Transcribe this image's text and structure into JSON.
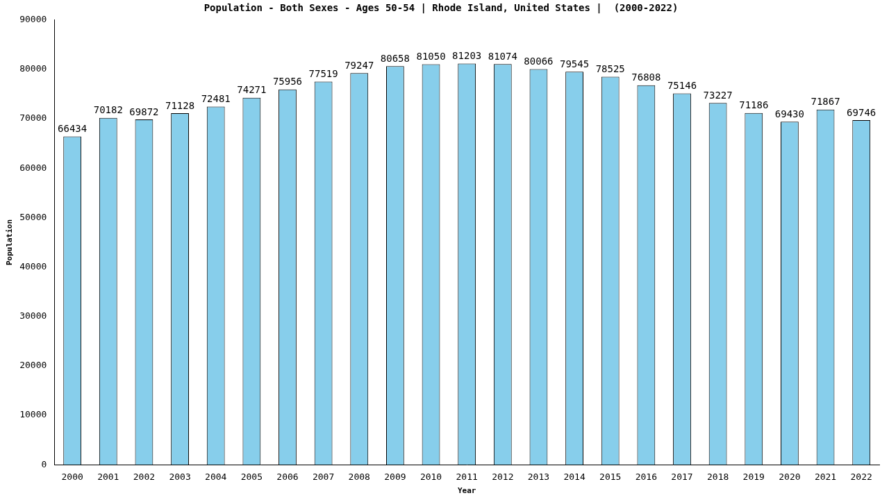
{
  "chart_data": {
    "type": "bar",
    "title": "Population - Both Sexes - Ages 50-54 | Rhode Island, United States |  (2000-2022)",
    "x_label": "Year",
    "y_label": "Population",
    "categories": [
      "2000",
      "2001",
      "2002",
      "2003",
      "2004",
      "2005",
      "2006",
      "2007",
      "2008",
      "2009",
      "2010",
      "2011",
      "2012",
      "2013",
      "2014",
      "2015",
      "2016",
      "2017",
      "2018",
      "2019",
      "2020",
      "2021",
      "2022"
    ],
    "values": [
      66434,
      70182,
      69872,
      71128,
      72481,
      74271,
      75956,
      77519,
      79247,
      80658,
      81050,
      81203,
      81074,
      80066,
      79545,
      78525,
      76808,
      75146,
      73227,
      71186,
      69430,
      71867,
      69746
    ],
    "color": "#87ceeb",
    "ylim": [
      0,
      90000
    ],
    "yticks": [
      0,
      10000,
      20000,
      30000,
      40000,
      50000,
      60000,
      70000,
      80000,
      90000
    ],
    "grid": false,
    "data_labels": true
  }
}
